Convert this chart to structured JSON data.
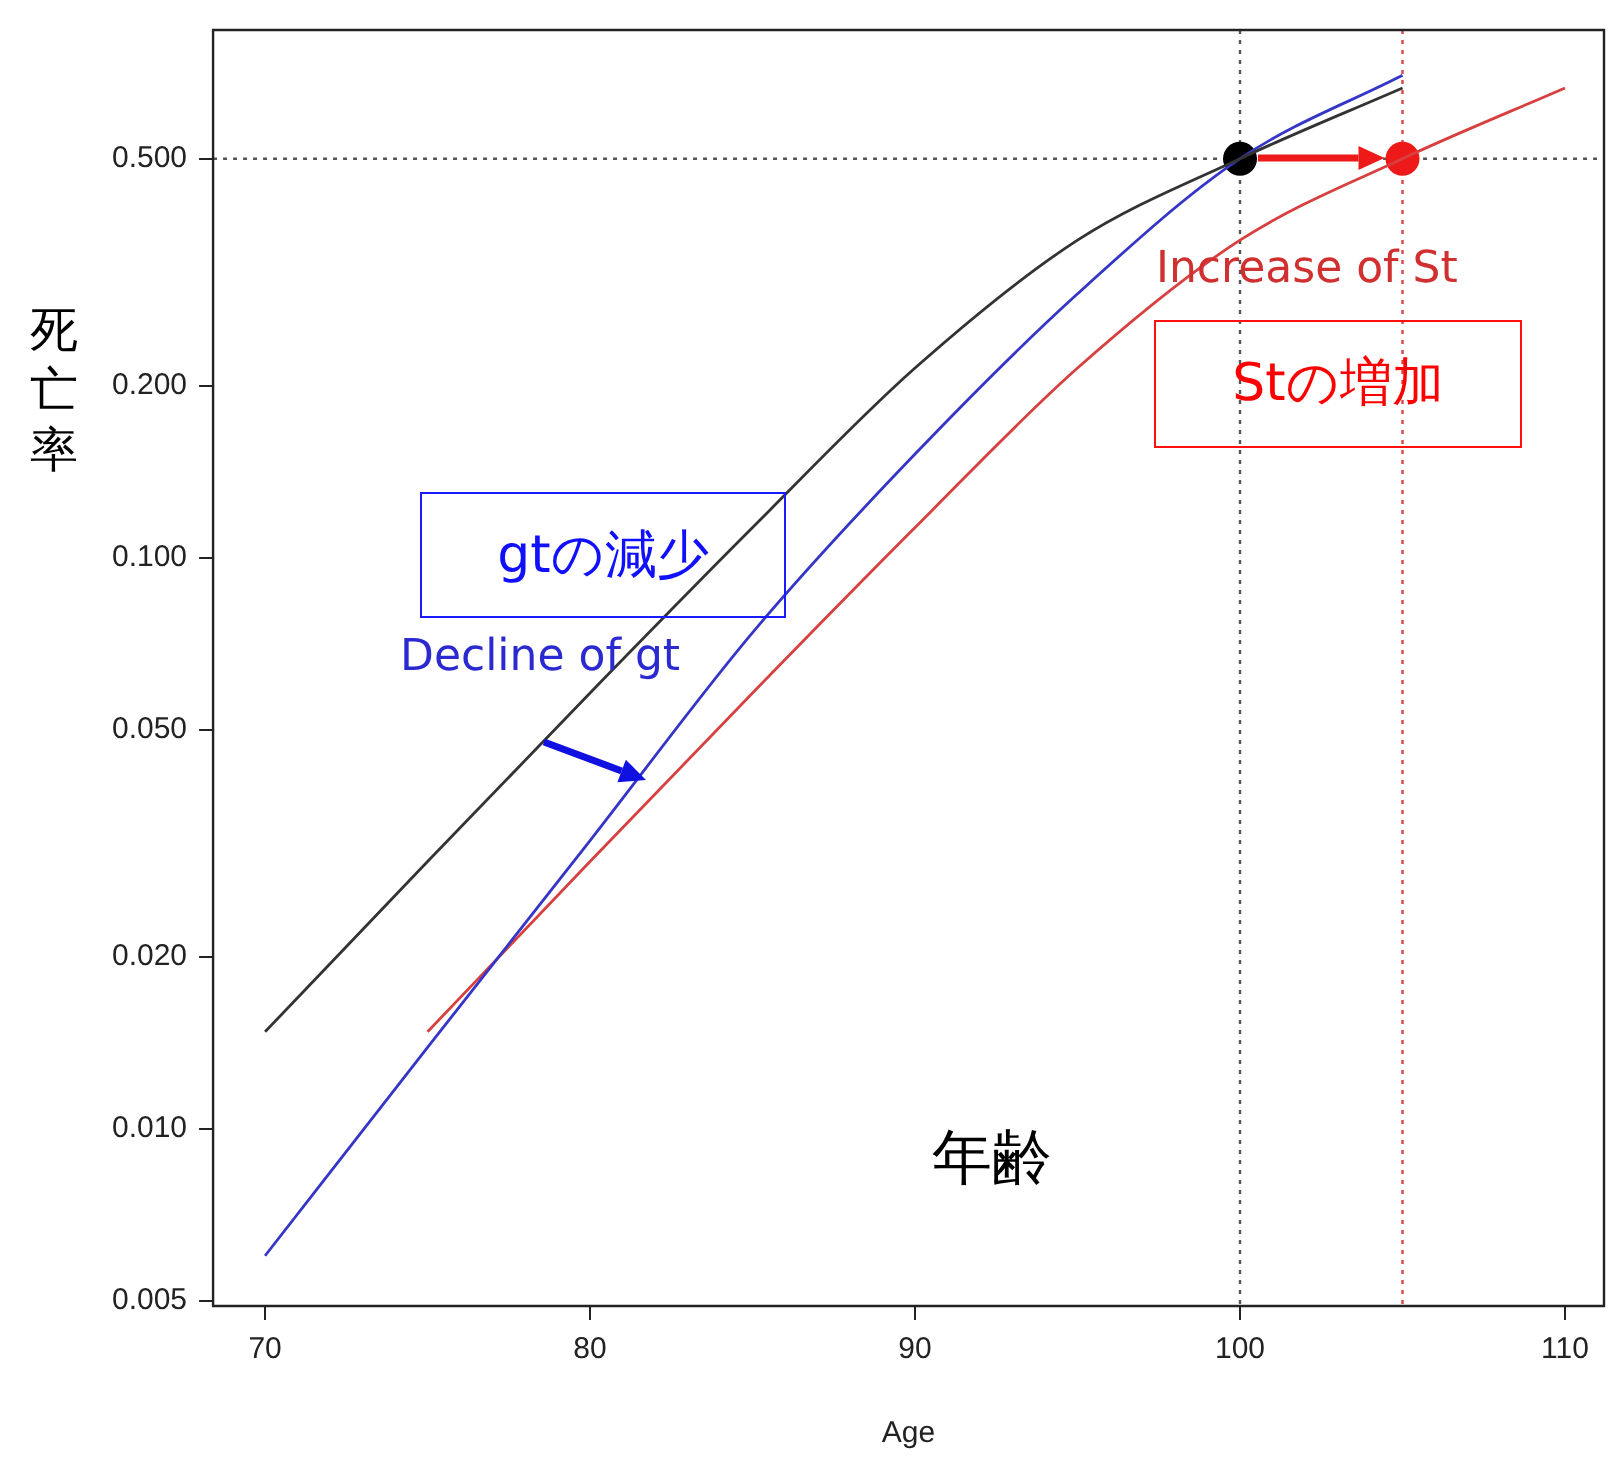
{
  "chart_data": {
    "type": "line",
    "xlabel": "Age",
    "ylabel": "死亡率",
    "series": [
      {
        "color": "#333333",
        "x": [
          70,
          75,
          80,
          85,
          90,
          95,
          100,
          105
        ],
        "values": [
          0.0148,
          0.0294,
          0.058,
          0.113,
          0.215,
          0.36,
          0.5,
          0.665
        ]
      },
      {
        "color": "#3535c8",
        "x": [
          70,
          75,
          80,
          85,
          90,
          95,
          100,
          105
        ],
        "values": [
          0.006,
          0.0139,
          0.032,
          0.074,
          0.152,
          0.29,
          0.5,
          0.7
        ]
      },
      {
        "color": "#d84040",
        "x": [
          75,
          80,
          85,
          90,
          95,
          100,
          105,
          110
        ],
        "values": [
          0.0148,
          0.0294,
          0.058,
          0.113,
          0.215,
          0.36,
          0.5,
          0.665
        ]
      },
      {
        "type": "scatter",
        "marker": "circle",
        "x": [
          100,
          105
        ],
        "values": [
          0.5,
          0.5
        ],
        "colors": [
          "#000000",
          "#ee1a1a"
        ]
      }
    ],
    "log": "y",
    "xlim": [
      68.4,
      111.2
    ],
    "xticks": [
      70,
      80,
      90,
      100,
      110
    ],
    "ylim": [
      0.0049,
      0.84
    ],
    "yticks": [
      {
        "value": 0.005,
        "label": "0.005"
      },
      {
        "value": 0.01,
        "label": "0.010"
      },
      {
        "value": 0.02,
        "label": "0.020"
      },
      {
        "value": 0.05,
        "label": "0.050"
      },
      {
        "value": 0.1,
        "label": "0.100"
      },
      {
        "value": 0.2,
        "label": "0.200"
      },
      {
        "value": 0.5,
        "label": "0.500"
      }
    ],
    "ref_lines": [
      {
        "axis": "y",
        "value": 0.5,
        "color": "#555555",
        "line_style": "dotted"
      },
      {
        "axis": "x",
        "value": 100,
        "color": "#555555",
        "line_style": "dotted"
      },
      {
        "axis": "x",
        "value": 105,
        "color": "#dd4444",
        "line_style": "dotted"
      }
    ],
    "annotations": [
      "gtの減少",
      "Decline of gt",
      "Increase of St",
      "Stの増加",
      "年齢"
    ],
    "grid": false,
    "legend": false,
    "line_style": "solid"
  }
}
